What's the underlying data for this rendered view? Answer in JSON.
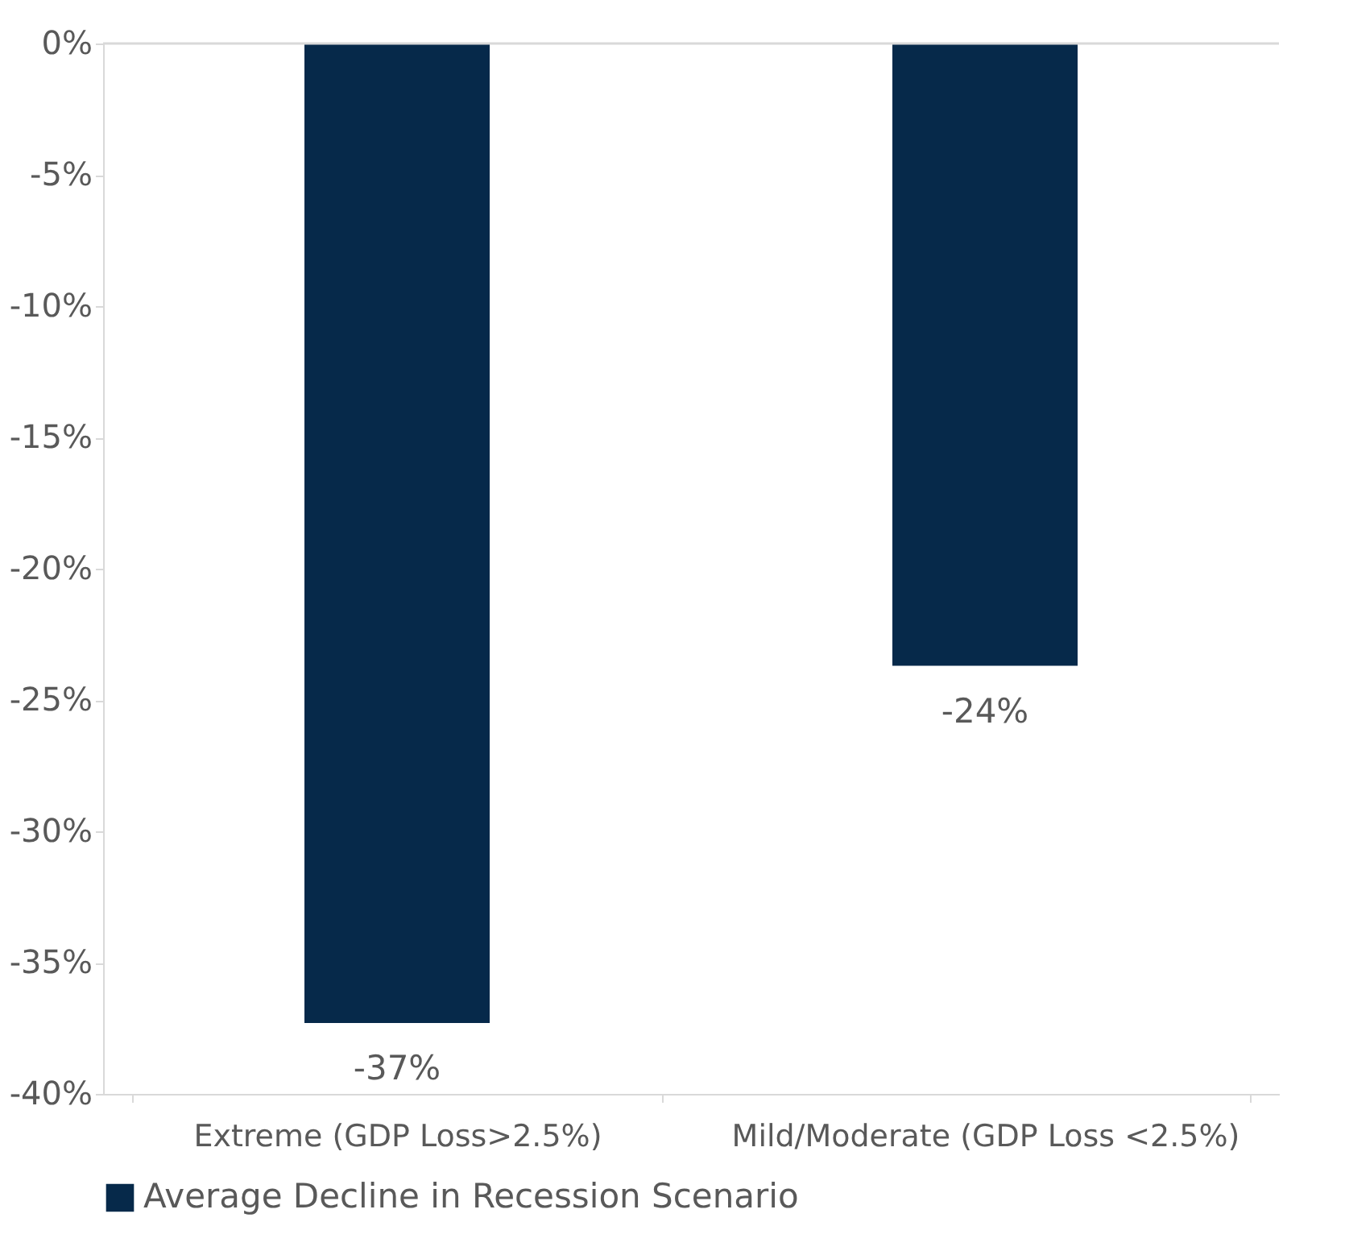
{
  "chart_data": {
    "type": "bar",
    "categories": [
      "Extreme (GDP Loss>2.5%)",
      "Mild/Moderate (GDP Loss <2.5%)"
    ],
    "series": [
      {
        "name": "Average Decline in Recession Scenario",
        "color": "#06294a",
        "values": [
          -37.3,
          -23.7
        ],
        "value_labels": [
          "-37%",
          "-24%"
        ]
      }
    ],
    "ylim": [
      -40,
      0
    ],
    "yticks": [
      {
        "value": 0,
        "label": "0%"
      },
      {
        "value": -5,
        "label": "-5%"
      },
      {
        "value": -10,
        "label": "-10%"
      },
      {
        "value": -15,
        "label": "-15%"
      },
      {
        "value": -20,
        "label": "-20%"
      },
      {
        "value": -25,
        "label": "-25%"
      },
      {
        "value": -30,
        "label": "-30%"
      },
      {
        "value": -35,
        "label": "-35%"
      },
      {
        "value": -40,
        "label": "-40%"
      }
    ],
    "ref_lines": [
      {
        "axis": "y",
        "value": 0,
        "color": "#d9d9d9"
      }
    ],
    "grid": false,
    "legend": "bottom"
  }
}
